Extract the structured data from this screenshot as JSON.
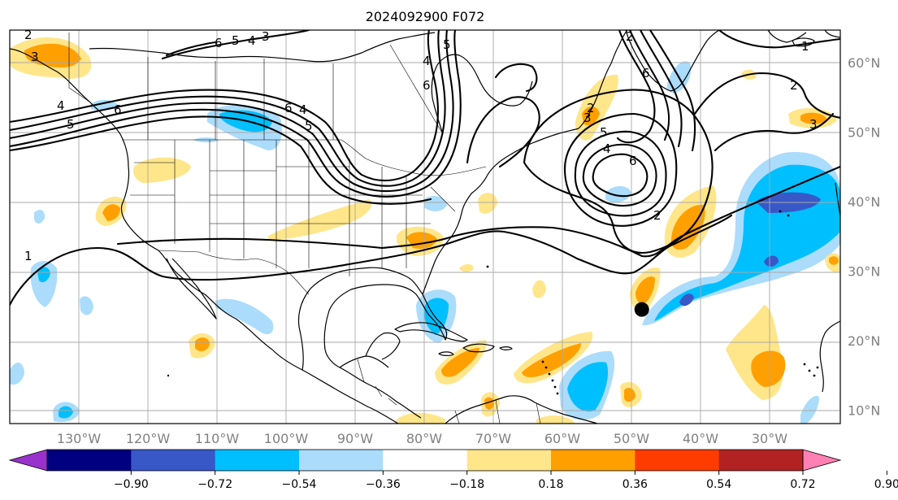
{
  "title": "2024092900 F072",
  "lon_labels": [
    {
      "lon": -130,
      "text": "130°W"
    },
    {
      "lon": -120,
      "text": "120°W"
    },
    {
      "lon": -110,
      "text": "110°W"
    },
    {
      "lon": -100,
      "text": "100°W"
    },
    {
      "lon": -90,
      "text": "90°W"
    },
    {
      "lon": -80,
      "text": "80°W"
    },
    {
      "lon": -70,
      "text": "70°W"
    },
    {
      "lon": -60,
      "text": "60°W"
    },
    {
      "lon": -50,
      "text": "50°W"
    },
    {
      "lon": -40,
      "text": "40°W"
    },
    {
      "lon": -30,
      "text": "30°W"
    }
  ],
  "lat_labels": [
    {
      "lat": 60,
      "text": "60°N"
    },
    {
      "lat": 50,
      "text": "50°N"
    },
    {
      "lat": 40,
      "text": "40°N"
    },
    {
      "lat": 30,
      "text": "30°N"
    },
    {
      "lat": 20,
      "text": "20°N"
    },
    {
      "lat": 10,
      "text": "10°N"
    }
  ],
  "colorbar": {
    "ticks": [
      "−0.90",
      "−0.72",
      "−0.54",
      "−0.36",
      "−0.18",
      "0.18",
      "0.36",
      "0.54",
      "0.72",
      "0.90"
    ],
    "colors": [
      "#9932cc",
      "#000080",
      "#3858c8",
      "#00bfff",
      "#abdcfb",
      "#ffffff",
      "#ffe68a",
      "#ffa000",
      "#ff3c00",
      "#b22222",
      "#ff80b4"
    ]
  },
  "contour_labels": [
    "2",
    "3",
    "4",
    "5",
    "6",
    "6",
    "5",
    "4",
    "3",
    "6",
    "4",
    "5",
    "6",
    "4",
    "5",
    "3",
    "2",
    "6",
    "5",
    "4",
    "2",
    "6",
    "2",
    "1",
    "2",
    "3",
    "1"
  ],
  "marker": {
    "lon": -48.5,
    "lat": 24.5
  }
}
